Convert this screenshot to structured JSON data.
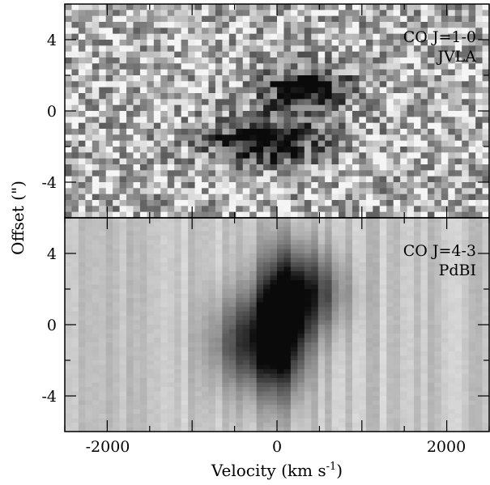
{
  "chart_data": {
    "type": "heatmap",
    "title": "",
    "xlabel": "Velocity (km s",
    "xlabel_sup": "-1",
    "xlabel_close": ")",
    "ylabel": "Offset (\")",
    "xlim": [
      -2500,
      2500
    ],
    "x_ticks": [
      -2000,
      0,
      2000
    ],
    "x_tick_labels": [
      "-2000",
      "0",
      "2000"
    ],
    "colormap": "grayscale (dark = high intensity)",
    "panels": [
      {
        "name": "co10",
        "label_line1": "CO J=1-0",
        "label_line2": "JVLA",
        "ylim": [
          -6,
          6
        ],
        "y_ticks": [
          4,
          0,
          -4
        ],
        "y_tick_labels": [
          "4",
          "0",
          "-4"
        ],
        "noise": "high",
        "features": [
          {
            "velocity_kms": 350,
            "offset_arcsec": 1.2,
            "vel_width_kms": 380,
            "offset_width_arcsec": 0.9,
            "peak": 0.75
          },
          {
            "velocity_kms": -150,
            "offset_arcsec": -1.7,
            "vel_width_kms": 450,
            "offset_width_arcsec": 0.9,
            "peak": 0.8
          }
        ]
      },
      {
        "name": "co43",
        "label_line1": "CO J=4-3",
        "label_line2": "PdBI",
        "ylim": [
          -6,
          6
        ],
        "y_ticks": [
          4,
          0,
          -4
        ],
        "y_tick_labels": [
          "4",
          "0",
          "-4"
        ],
        "noise": "low",
        "features": [
          {
            "velocity_kms": 50,
            "offset_arcsec": 0,
            "vel_width_kms": 220,
            "offset_width_arcsec": 2.6,
            "peak": 0.95
          },
          {
            "velocity_kms": 400,
            "offset_arcsec": 1.8,
            "vel_width_kms": 280,
            "offset_width_arcsec": 1.6,
            "peak": 0.55
          },
          {
            "velocity_kms": -350,
            "offset_arcsec": -1.0,
            "vel_width_kms": 300,
            "offset_width_arcsec": 1.8,
            "peak": 0.55
          }
        ]
      }
    ]
  }
}
